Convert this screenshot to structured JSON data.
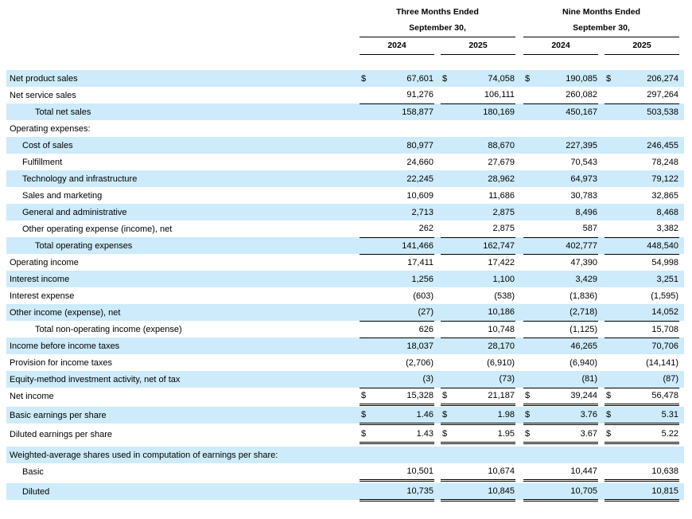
{
  "currency_symbol": "$",
  "colors": {
    "stripe": "#cdebfa",
    "rule": "#000000"
  },
  "header": {
    "groups": [
      {
        "title": "Three Months Ended",
        "subtitle": "September 30,",
        "years": [
          "2024",
          "2025"
        ]
      },
      {
        "title": "Nine Months Ended",
        "subtitle": "September 30,",
        "years": [
          "2024",
          "2025"
        ]
      }
    ]
  },
  "rows": [
    {
      "label": "Net product sales",
      "indent": 0,
      "shaded": true,
      "dollar": true,
      "border": "none",
      "values": [
        "67,601",
        "74,058",
        "190,085",
        "206,274"
      ]
    },
    {
      "label": "Net service sales",
      "indent": 0,
      "shaded": false,
      "dollar": false,
      "border": "single",
      "values": [
        "91,276",
        "106,111",
        "260,082",
        "297,264"
      ]
    },
    {
      "label": "Total net sales",
      "indent": 2,
      "shaded": true,
      "dollar": false,
      "border": "none",
      "values": [
        "158,877",
        "180,169",
        "450,167",
        "503,538"
      ]
    },
    {
      "label": "Operating expenses:",
      "indent": 0,
      "shaded": false,
      "dollar": false,
      "border": "none",
      "values": [
        "",
        "",
        "",
        ""
      ]
    },
    {
      "label": "Cost of sales",
      "indent": 1,
      "shaded": true,
      "dollar": false,
      "border": "none",
      "values": [
        "80,977",
        "88,670",
        "227,395",
        "246,455"
      ]
    },
    {
      "label": "Fulfillment",
      "indent": 1,
      "shaded": false,
      "dollar": false,
      "border": "none",
      "values": [
        "24,660",
        "27,679",
        "70,543",
        "78,248"
      ]
    },
    {
      "label": "Technology and infrastructure",
      "indent": 1,
      "shaded": true,
      "dollar": false,
      "border": "none",
      "values": [
        "22,245",
        "28,962",
        "64,973",
        "79,122"
      ]
    },
    {
      "label": "Sales and marketing",
      "indent": 1,
      "shaded": false,
      "dollar": false,
      "border": "none",
      "values": [
        "10,609",
        "11,686",
        "30,783",
        "32,865"
      ]
    },
    {
      "label": "General and administrative",
      "indent": 1,
      "shaded": true,
      "dollar": false,
      "border": "none",
      "values": [
        "2,713",
        "2,875",
        "8,496",
        "8,468"
      ]
    },
    {
      "label": "Other operating expense (income), net",
      "indent": 1,
      "shaded": false,
      "dollar": false,
      "border": "single",
      "values": [
        "262",
        "2,875",
        "587",
        "3,382"
      ]
    },
    {
      "label": "Total operating expenses",
      "indent": 2,
      "shaded": true,
      "dollar": false,
      "border": "single",
      "values": [
        "141,466",
        "162,747",
        "402,777",
        "448,540"
      ]
    },
    {
      "label": "Operating income",
      "indent": 0,
      "shaded": false,
      "dollar": false,
      "border": "none",
      "values": [
        "17,411",
        "17,422",
        "47,390",
        "54,998"
      ]
    },
    {
      "label": "Interest income",
      "indent": 0,
      "shaded": true,
      "dollar": false,
      "border": "none",
      "values": [
        "1,256",
        "1,100",
        "3,429",
        "3,251"
      ]
    },
    {
      "label": "Interest expense",
      "indent": 0,
      "shaded": false,
      "dollar": false,
      "border": "none",
      "values": [
        "(603)",
        "(538)",
        "(1,836)",
        "(1,595)"
      ]
    },
    {
      "label": "Other income (expense), net",
      "indent": 0,
      "shaded": true,
      "dollar": false,
      "border": "single",
      "values": [
        "(27)",
        "10,186",
        "(2,718)",
        "14,052"
      ]
    },
    {
      "label": "Total non-operating income (expense)",
      "indent": 2,
      "shaded": false,
      "dollar": false,
      "border": "single",
      "values": [
        "626",
        "10,748",
        "(1,125)",
        "15,708"
      ]
    },
    {
      "label": "Income before income taxes",
      "indent": 0,
      "shaded": true,
      "dollar": false,
      "border": "none",
      "values": [
        "18,037",
        "28,170",
        "46,265",
        "70,706"
      ]
    },
    {
      "label": "Provision for income taxes",
      "indent": 0,
      "shaded": false,
      "dollar": false,
      "border": "none",
      "values": [
        "(2,706)",
        "(6,910)",
        "(6,940)",
        "(14,141)"
      ]
    },
    {
      "label": "Equity-method investment activity, net of tax",
      "indent": 0,
      "shaded": true,
      "dollar": false,
      "border": "single",
      "values": [
        "(3)",
        "(73)",
        "(81)",
        "(87)"
      ]
    },
    {
      "label": "Net income",
      "indent": 0,
      "shaded": false,
      "dollar": true,
      "border": "double",
      "spacer_after": 3,
      "values": [
        "15,328",
        "21,187",
        "39,244",
        "56,478"
      ]
    },
    {
      "label": "Basic earnings per share",
      "indent": 0,
      "shaded": true,
      "dollar": true,
      "border": "double",
      "spacer_after": 3,
      "values": [
        "1.46",
        "1.98",
        "3.76",
        "5.31"
      ]
    },
    {
      "label": "Diluted earnings per share",
      "indent": 0,
      "shaded": false,
      "dollar": true,
      "border": "double",
      "spacer_after": 5,
      "values": [
        "1.43",
        "1.95",
        "3.67",
        "5.22"
      ]
    },
    {
      "label": "Weighted-average shares used in computation of earnings per share:",
      "indent": 0,
      "shaded": true,
      "dollar": false,
      "border": "none",
      "values": [
        "",
        "",
        "",
        ""
      ]
    },
    {
      "label": "Basic",
      "indent": 1,
      "shaded": false,
      "dollar": false,
      "border": "double",
      "spacer_after": 4,
      "values": [
        "10,501",
        "10,674",
        "10,447",
        "10,638"
      ]
    },
    {
      "label": "Diluted",
      "indent": 1,
      "shaded": true,
      "dollar": false,
      "border": "double",
      "values": [
        "10,735",
        "10,845",
        "10,705",
        "10,815"
      ]
    }
  ]
}
